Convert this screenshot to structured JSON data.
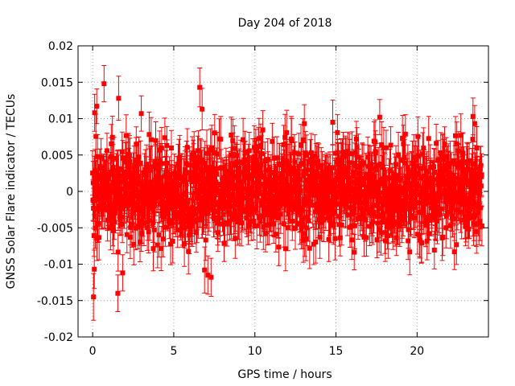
{
  "chart_data": {
    "type": "scatter",
    "title": "Day 204 of 2018",
    "xlabel": "GPS time / hours",
    "ylabel": "GNSS Solar Flare indicator / TECUs",
    "xlim": [
      -0.9,
      24.4
    ],
    "ylim": [
      -0.02,
      0.02
    ],
    "xticks": [
      0,
      5,
      10,
      15,
      20
    ],
    "yticks": [
      -0.02,
      -0.015,
      -0.01,
      -0.005,
      0,
      0.005,
      0.01,
      0.015,
      0.02
    ],
    "xtick_labels": [
      "0",
      "5",
      "10",
      "15",
      "20"
    ],
    "ytick_labels": [
      "-0.02",
      "-0.015",
      "-0.01",
      "-0.005",
      "0",
      "0.005",
      "0.01",
      "0.015",
      "0.02"
    ],
    "grid": true,
    "color": "#ff0000",
    "series": [
      {
        "name": "GNSS Solar Flare indicator",
        "x_range": [
          0.0,
          24.0
        ],
        "point_count": 1440,
        "noise_std": 0.0032,
        "error_bar_typical": 0.0028,
        "points": [
          {
            "x": 0.05,
            "y": -0.0145,
            "err": 0.0028
          },
          {
            "x": 0.1,
            "y": -0.0107,
            "err": 0.0028
          },
          {
            "x": 0.12,
            "y": 0.0108,
            "err": 0.0028
          },
          {
            "x": 0.25,
            "y": 0.0117,
            "err": 0.0028
          },
          {
            "x": 0.7,
            "y": 0.0148,
            "err": 0.0028
          },
          {
            "x": 1.55,
            "y": -0.014,
            "err": 0.0028
          },
          {
            "x": 1.6,
            "y": 0.0128,
            "err": 0.0028
          },
          {
            "x": 1.85,
            "y": -0.0112,
            "err": 0.0028
          },
          {
            "x": 3.0,
            "y": 0.0107,
            "err": 0.0028
          },
          {
            "x": 6.6,
            "y": 0.0143,
            "err": 0.0028
          },
          {
            "x": 6.75,
            "y": 0.0113,
            "err": 0.0028
          },
          {
            "x": 6.9,
            "y": -0.0108,
            "err": 0.0028
          },
          {
            "x": 7.1,
            "y": -0.0115,
            "err": 0.0028
          },
          {
            "x": 7.3,
            "y": -0.0118,
            "err": 0.0028
          },
          {
            "x": 13.05,
            "y": 0.0093,
            "err": 0.0028
          },
          {
            "x": 14.8,
            "y": 0.0095,
            "err": 0.0028
          },
          {
            "x": 17.7,
            "y": 0.0102,
            "err": 0.0028
          },
          {
            "x": 22.3,
            "y": -0.0083,
            "err": 0.0028
          },
          {
            "x": 23.45,
            "y": 0.0103,
            "err": 0.0028
          },
          {
            "x": 23.55,
            "y": 0.0093,
            "err": 0.0028
          }
        ]
      }
    ]
  }
}
